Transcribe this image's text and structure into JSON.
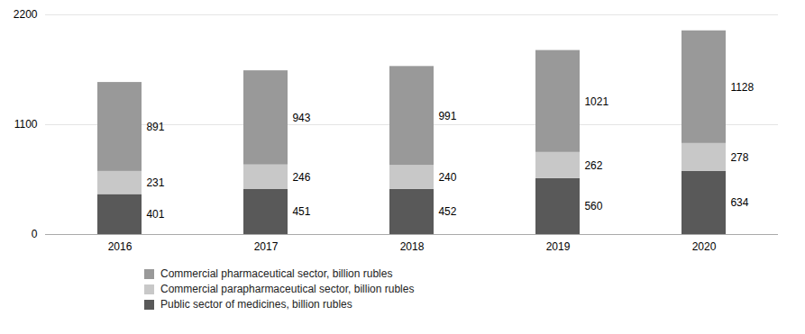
{
  "chart_data": {
    "type": "bar",
    "stacked": true,
    "categories": [
      "2016",
      "2017",
      "2018",
      "2019",
      "2020"
    ],
    "series": [
      {
        "name": "Public sector of medicines, billion rubles",
        "color": "#595959",
        "values": [
          401,
          451,
          452,
          560,
          634
        ]
      },
      {
        "name": "Commercial parapharmaceutical sector, billion rubles",
        "color": "#c8c8c8",
        "values": [
          231,
          246,
          240,
          262,
          278
        ]
      },
      {
        "name": "Commercial pharmaceutical sector, billion rubles",
        "color": "#999999",
        "values": [
          891,
          943,
          991,
          1021,
          1128
        ]
      }
    ],
    "ylim": [
      0,
      2200
    ],
    "yticks": [
      0,
      1100,
      2200
    ],
    "grid": true,
    "data_labels": true,
    "legend": "bottom"
  }
}
